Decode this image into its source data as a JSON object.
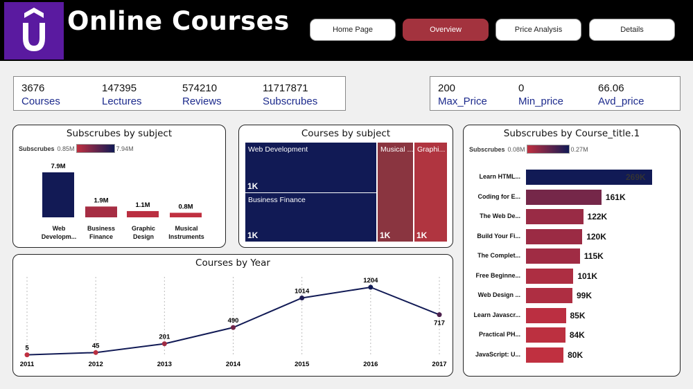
{
  "app": {
    "title": "Online Courses",
    "logo_icon": "udemy-u-logo-icon"
  },
  "nav": [
    {
      "label": "Home Page",
      "active": false
    },
    {
      "label": "Overview",
      "active": true
    },
    {
      "label": "Price Analysis",
      "active": false
    },
    {
      "label": "Details",
      "active": false
    }
  ],
  "kpis": [
    {
      "value": "3676",
      "label": "Courses"
    },
    {
      "value": "147395",
      "label": "Lectures"
    },
    {
      "value": "574210",
      "label": "Reviews"
    },
    {
      "value": "11717871",
      "label": "Subscrubes"
    }
  ],
  "price_kpis": [
    {
      "value": "200",
      "label": "Max_Price"
    },
    {
      "value": "0",
      "label": "Min_price"
    },
    {
      "value": "66.06",
      "label": "Avd_price"
    }
  ],
  "colors": {
    "header_bg": "#000000",
    "logo_bg": "#5a1aa0",
    "accent": "#a3333e",
    "dark": "#111a55",
    "kpi_label": "#1c2a8c"
  },
  "subject_chart": {
    "title": "Subscrubes by subject",
    "legend": {
      "title": "Subscrubes",
      "min": "0.85M",
      "max": "7.94M"
    }
  },
  "treemap": {
    "title": "Courses by subject",
    "cells": [
      {
        "name": "Web Development",
        "value_label": "1K"
      },
      {
        "name": "Business Finance",
        "value_label": "1K"
      },
      {
        "name": "Musical ...",
        "value_label": "1K"
      },
      {
        "name": "Graphi...",
        "value_label": "1K"
      }
    ]
  },
  "course_chart": {
    "title": "Subscrubes by Course_title.1",
    "legend": {
      "title": "Subscrubes",
      "min": "0.08M",
      "max": "0.27M"
    }
  },
  "year_chart": {
    "title": "Courses by Year"
  },
  "chart_data": [
    {
      "type": "bar",
      "title": "Subscrubes by subject",
      "categories": [
        "Web Developm...",
        "Business Finance",
        "Graphic Design",
        "Musical Instruments"
      ],
      "values": [
        7.9,
        1.9,
        1.1,
        0.8
      ],
      "value_labels": [
        "7.9M",
        "1.9M",
        "1.1M",
        "0.8M"
      ],
      "color_range": [
        "0.85M",
        "7.94M"
      ]
    },
    {
      "type": "heatmap",
      "title": "Courses by subject",
      "categories": [
        "Web Development",
        "Business Finance",
        "Musical ...",
        "Graphi..."
      ],
      "value_labels": [
        "1K",
        "1K",
        "1K",
        "1K"
      ]
    },
    {
      "type": "bar",
      "title": "Subscrubes by Course_title.1",
      "orientation": "horizontal",
      "categories": [
        "Learn HTML...",
        "Coding for E...",
        "The Web De...",
        "Build Your Fi...",
        "The Complet...",
        "Free Beginne...",
        "Web Design ...",
        "Learn Javascr...",
        "Practical PH...",
        "JavaScript: U..."
      ],
      "values": [
        269,
        161,
        122,
        120,
        115,
        101,
        99,
        85,
        84,
        80
      ],
      "value_labels": [
        "269K",
        "161K",
        "122K",
        "120K",
        "115K",
        "101K",
        "99K",
        "85K",
        "84K",
        "80K"
      ],
      "color_range": [
        "0.08M",
        "0.27M"
      ]
    },
    {
      "type": "line",
      "title": "Courses by Year",
      "x": [
        "2011",
        "2012",
        "2013",
        "2014",
        "2015",
        "2016",
        "2017"
      ],
      "values": [
        5,
        45,
        201,
        490,
        1014,
        1204,
        717
      ],
      "value_labels": [
        "5",
        "45",
        "201",
        "490",
        "1014",
        "1204",
        "717"
      ]
    }
  ]
}
